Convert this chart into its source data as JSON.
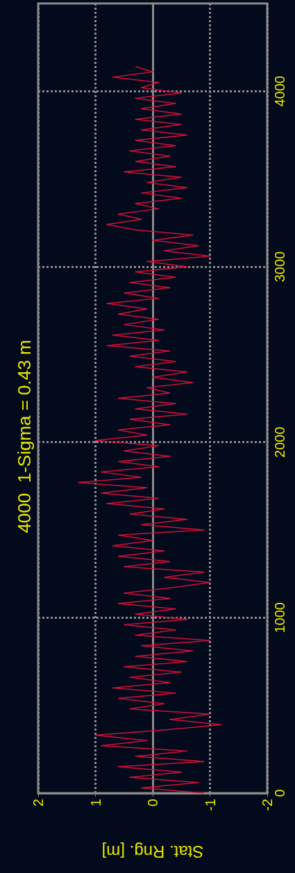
{
  "chart_data": {
    "type": "line",
    "title": "4000  1-Sigma = 0.43 m",
    "xlabel": "Stat. Rng. [m]",
    "series": [
      {
        "color": "#d0103a",
        "x": [
          -0.9,
          0.2,
          -0.8,
          0.4,
          -0.5,
          0.6,
          -0.9,
          0.3,
          -0.6,
          0.9,
          0.1,
          1.0,
          -0.2,
          -1.2,
          -0.3,
          -1.0,
          0.4,
          -0.2,
          0.6,
          -0.4,
          0.7,
          -0.3,
          0.4,
          -0.5,
          0.5,
          -0.6,
          0.3,
          -0.7,
          0.2,
          -1.0,
          0.3,
          -0.4,
          0.5,
          -0.6,
          0.3,
          -0.4,
          0.6,
          -0.3,
          0.5,
          -0.3,
          -1.0,
          -0.2,
          -0.9,
          0.5,
          -0.3,
          0.6,
          -0.2,
          0.7,
          0.0,
          0.6,
          -0.9,
          0.2,
          -0.6,
          0.4,
          -0.2,
          0.8,
          -0.1,
          0.9,
          0.1,
          1.3,
          0.2,
          0.9,
          -0.1,
          0.6,
          -0.3,
          0.5,
          -0.1,
          1.0,
          0.1,
          0.6,
          -0.3,
          0.4,
          -0.6,
          0.3,
          -0.4,
          0.6,
          -0.3,
          0.1,
          -0.7,
          0.0,
          -0.6,
          0.3,
          -0.4,
          0.4,
          -0.3,
          0.8,
          -0.1,
          0.7,
          -0.2,
          0.5,
          -0.1,
          0.6,
          0.1,
          0.8,
          -0.1,
          0.5,
          -0.3,
          0.4,
          -0.4,
          0.3,
          -0.6,
          0.1,
          -1.0,
          -0.2,
          -0.8,
          0.0,
          -0.7,
          0.3,
          0.8,
          0.2,
          0.6,
          -0.1,
          0.3,
          -0.5,
          0.2,
          -0.6,
          0.1,
          -0.5,
          0.5,
          -0.4,
          0.3,
          -0.3,
          0.4,
          -0.4,
          0.3,
          -0.6,
          0.2,
          -0.5,
          0.3,
          -0.5,
          0.2,
          -0.4,
          0.3,
          -0.5,
          0.2,
          -0.1,
          0.7,
          0.0,
          0.3
        ],
        "values": [
          0,
          30,
          60,
          90,
          120,
          150,
          180,
          210,
          240,
          270,
          300,
          330,
          360,
          390,
          420,
          450,
          480,
          510,
          540,
          570,
          600,
          630,
          660,
          690,
          720,
          750,
          780,
          810,
          840,
          870,
          900,
          930,
          960,
          990,
          1020,
          1050,
          1080,
          1110,
          1140,
          1170,
          1200,
          1230,
          1260,
          1290,
          1320,
          1350,
          1380,
          1410,
          1440,
          1470,
          1500,
          1530,
          1560,
          1590,
          1620,
          1650,
          1680,
          1710,
          1740,
          1770,
          1800,
          1830,
          1860,
          1890,
          1920,
          1950,
          1980,
          2010,
          2040,
          2070,
          2100,
          2130,
          2160,
          2190,
          2220,
          2250,
          2280,
          2310,
          2340,
          2370,
          2400,
          2430,
          2460,
          2490,
          2520,
          2550,
          2580,
          2610,
          2640,
          2670,
          2700,
          2730,
          2760,
          2790,
          2820,
          2850,
          2880,
          2910,
          2940,
          2970,
          3000,
          3030,
          3060,
          3090,
          3120,
          3150,
          3180,
          3210,
          3240,
          3270,
          3300,
          3330,
          3360,
          3390,
          3420,
          3450,
          3480,
          3510,
          3540,
          3570,
          3600,
          3630,
          3660,
          3690,
          3720,
          3750,
          3780,
          3810,
          3840,
          3870,
          3900,
          3930,
          3960,
          3990,
          4020,
          4050,
          4080,
          4110,
          4140
        ]
      }
    ],
    "xlim": [
      2,
      -2
    ],
    "xticks": [
      -2,
      -1,
      0,
      1,
      2
    ],
    "ylim": [
      0,
      4500
    ],
    "yticks": [
      0,
      1000,
      2000,
      3000,
      4000
    ],
    "grid": true,
    "marker": "none",
    "line_style": "solid"
  }
}
